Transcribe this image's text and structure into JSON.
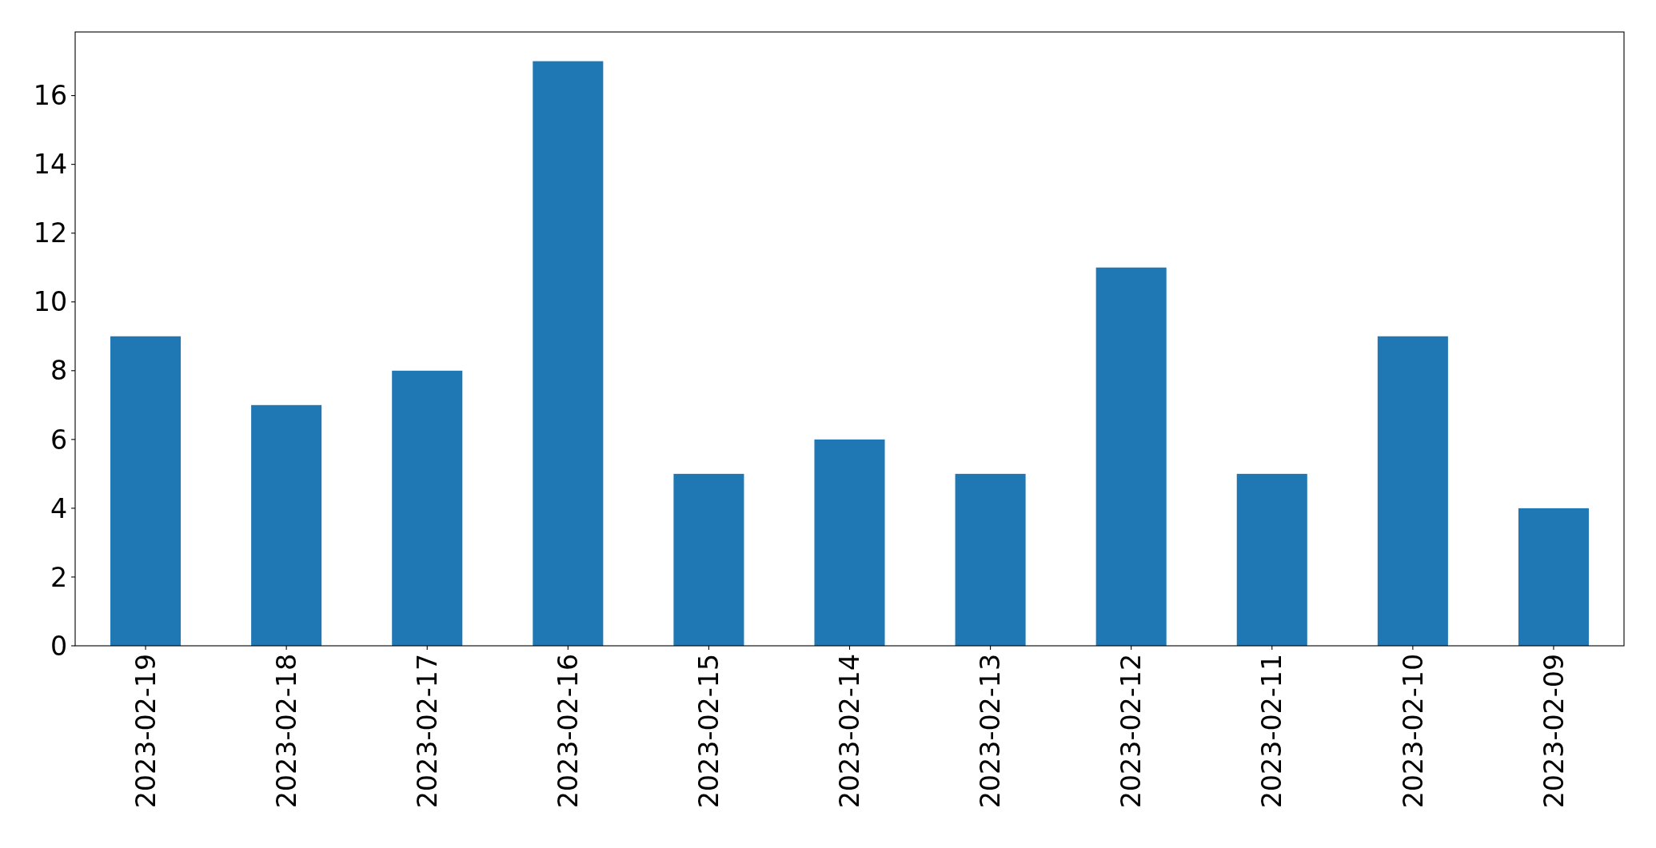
{
  "chart_data": {
    "type": "bar",
    "categories": [
      "2023-02-19",
      "2023-02-18",
      "2023-02-17",
      "2023-02-16",
      "2023-02-15",
      "2023-02-14",
      "2023-02-13",
      "2023-02-12",
      "2023-02-11",
      "2023-02-10",
      "2023-02-09"
    ],
    "values": [
      9,
      7,
      8,
      17,
      5,
      6,
      5,
      11,
      5,
      9,
      4
    ],
    "color": "#1f77b4",
    "ylim": [
      0,
      17.85
    ],
    "yticks": [
      0,
      2,
      4,
      6,
      8,
      10,
      12,
      14,
      16
    ]
  }
}
